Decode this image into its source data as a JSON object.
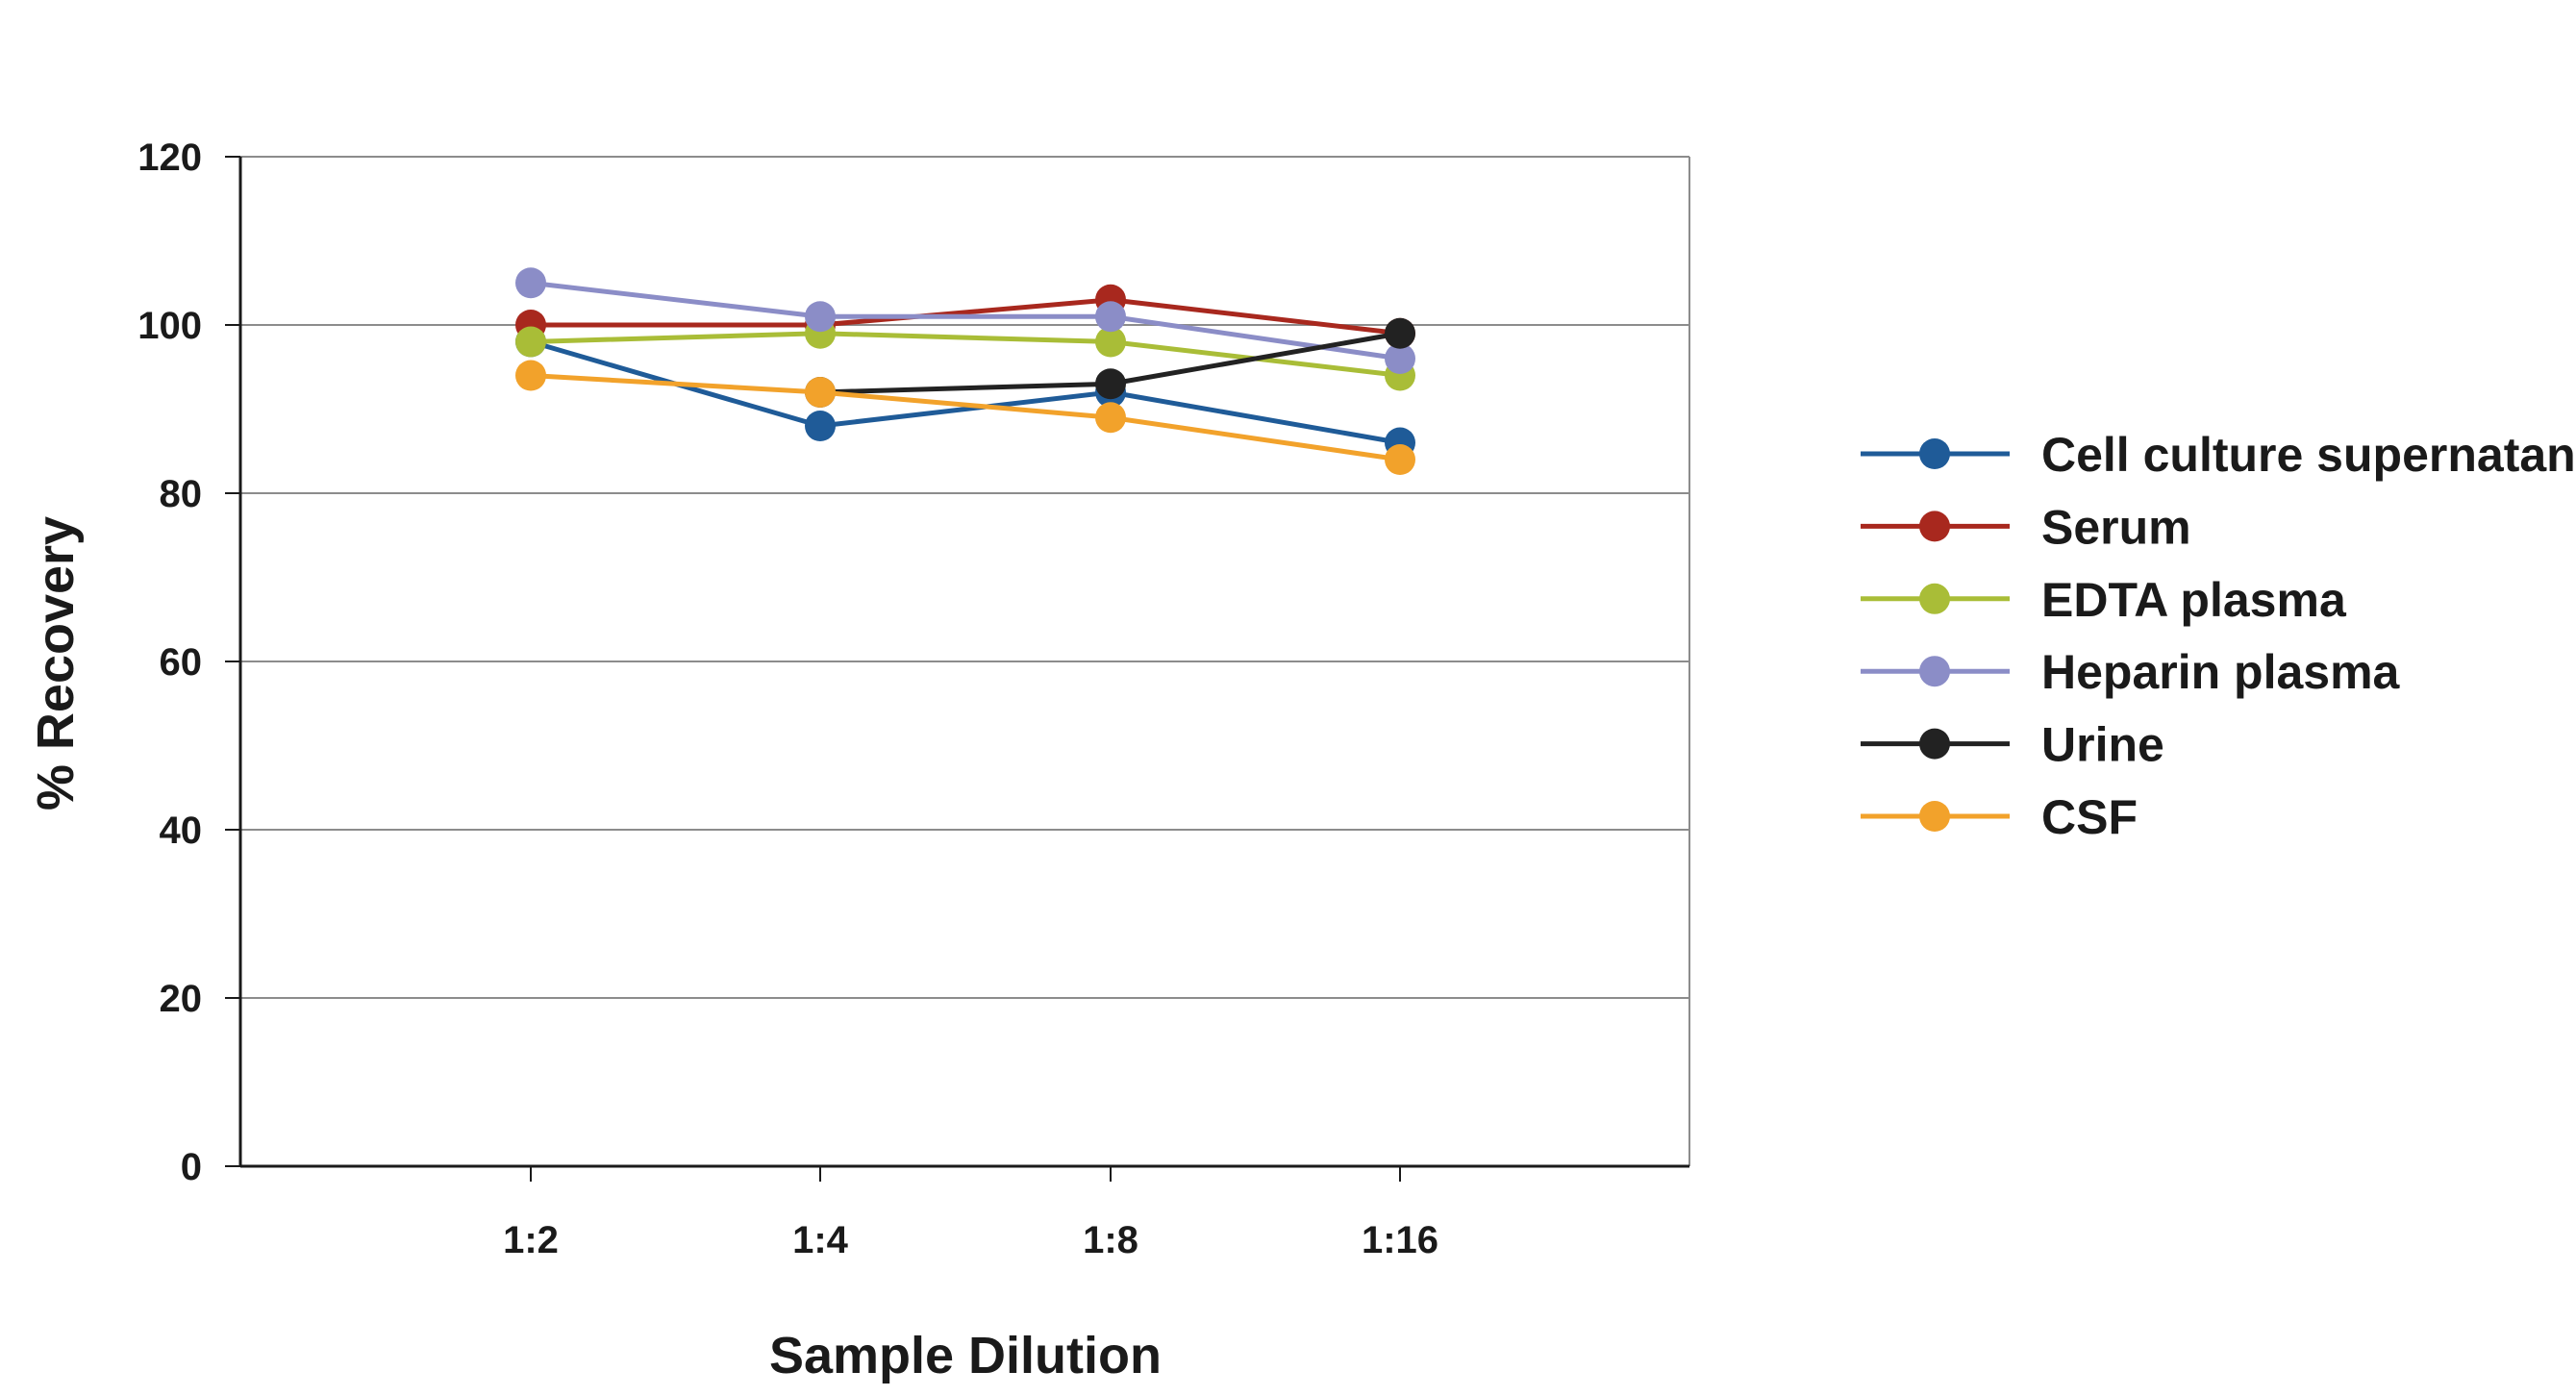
{
  "chart_data": {
    "type": "line",
    "xlabel": "Sample Dilution",
    "ylabel": "% Recovery",
    "ylim": [
      0,
      120
    ],
    "yticks": [
      "0",
      "20",
      "40",
      "60",
      "80",
      "100",
      "120"
    ],
    "categories": [
      "1:2",
      "1:4",
      "1:8",
      "1:16"
    ],
    "grid": true,
    "legend_position": "right",
    "series": [
      {
        "name": "Cell culture supernatant",
        "color": "#1f5b98",
        "values": [
          98,
          88,
          92,
          86
        ]
      },
      {
        "name": "Serum",
        "color": "#a8281e",
        "values": [
          100,
          100,
          103,
          99
        ]
      },
      {
        "name": "EDTA plasma",
        "color": "#a9bd37",
        "values": [
          98,
          99,
          98,
          94
        ]
      },
      {
        "name": "Heparin plasma",
        "color": "#8b8dc7",
        "values": [
          105,
          101,
          101,
          96
        ]
      },
      {
        "name": "Urine",
        "color": "#222222",
        "values": [
          null,
          92,
          93,
          99
        ]
      },
      {
        "name": "CSF",
        "color": "#f2a22b",
        "values": [
          94,
          92,
          89,
          84
        ]
      }
    ]
  }
}
